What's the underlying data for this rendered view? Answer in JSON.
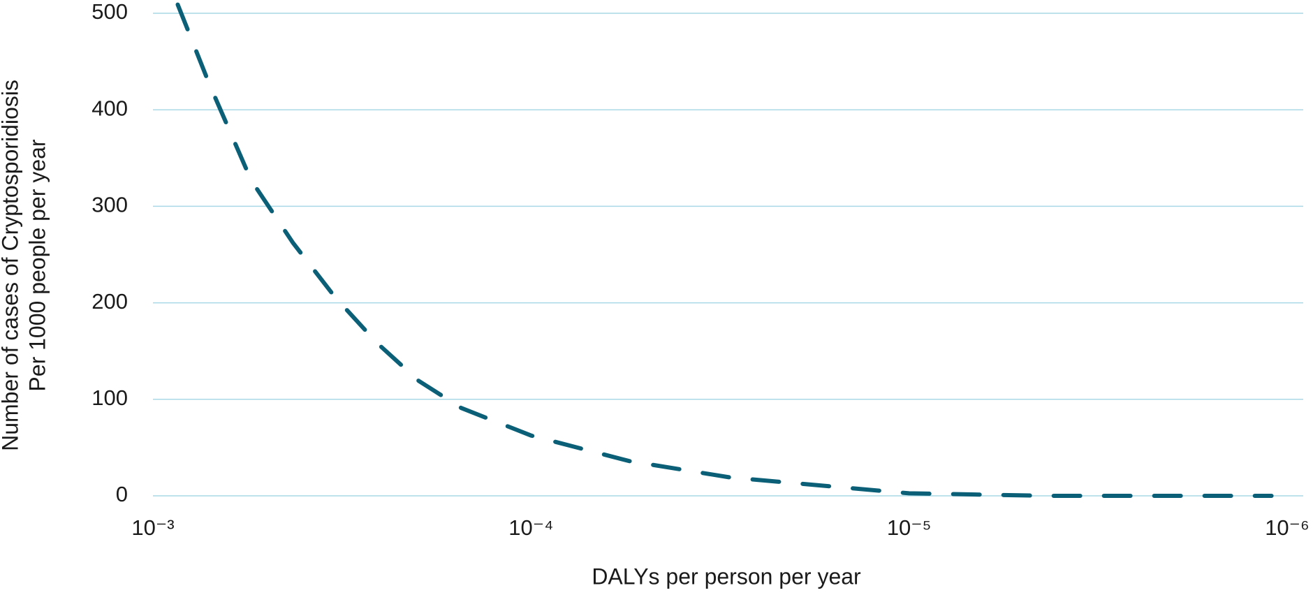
{
  "chart_data": {
    "type": "line",
    "x_scale": "log",
    "xlabel": "DALYs per person per year",
    "ylabel": [
      "Number of cases of Cryptosporidiosis",
      "Per 1000 people per year"
    ],
    "xlim": [
      0.001,
      1e-06
    ],
    "xticks": [
      {
        "value": 0.001,
        "label": "10⁻³"
      },
      {
        "value": 0.0001,
        "label": "10⁻⁴"
      },
      {
        "value": 1e-05,
        "label": "10⁻⁵"
      },
      {
        "value": 1e-06,
        "label": "10⁻⁶"
      }
    ],
    "ylim": [
      0,
      500
    ],
    "yticks": [
      0,
      100,
      200,
      300,
      400,
      500
    ],
    "grid": true,
    "grid_color": "#a9d9e6",
    "dashed": true,
    "series": [
      {
        "color": "#0b6078",
        "x": [
          0.00086,
          0.00071,
          0.00055,
          0.000426,
          0.00033,
          0.000255,
          0.000198,
          0.000153,
          0.0001,
          5.5e-05,
          2.97e-05,
          1e-05,
          4.3e-06,
          1.1e-06
        ],
        "values": [
          509,
          427,
          327,
          262,
          206,
          158,
          119,
          91,
          62.5,
          36,
          19,
          2.6,
          0,
          0
        ]
      }
    ]
  }
}
